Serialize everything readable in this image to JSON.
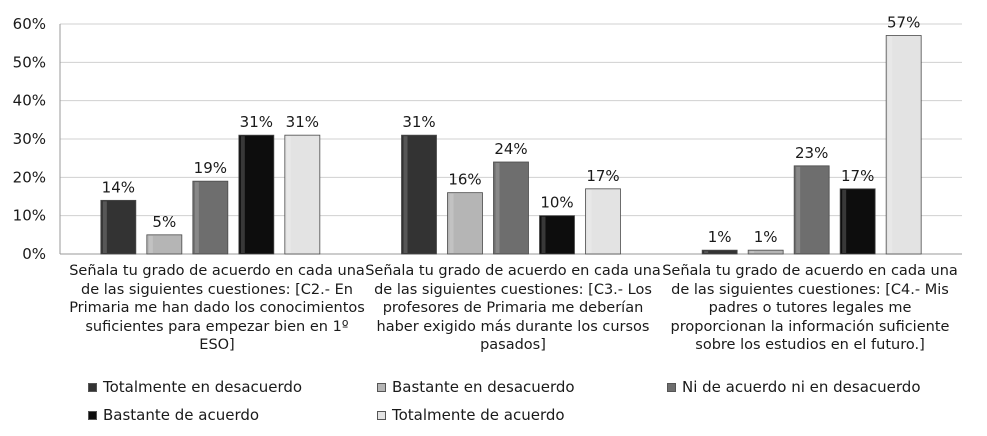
{
  "chart_data": {
    "type": "bar",
    "title": "",
    "xlabel": "",
    "ylabel": "",
    "ylim": [
      0,
      60
    ],
    "yticks": [
      "0%",
      "10%",
      "20%",
      "30%",
      "40%",
      "50%",
      "60%"
    ],
    "categories": [
      "Señala tu grado de acuerdo en cada una de las siguientes cuestiones: [C2.- En Primaria me han dado los conocimientos suficientes para empezar bien en 1º ESO]",
      "Señala tu grado de acuerdo en cada una de las siguientes cuestiones: [C3.- Los profesores de Primaria me deberían haber exigido más durante los cursos pasados]",
      "Señala tu grado de acuerdo en cada una de las siguientes cuestiones: [C4.- Mis padres o tutores legales me proporcionan la información suficiente sobre los estudios en el futuro.]"
    ],
    "series": [
      {
        "name": "Totalmente en desacuerdo",
        "color": "#333333",
        "values": [
          14,
          31,
          1
        ],
        "labels": [
          "14%",
          "31%",
          "1%"
        ]
      },
      {
        "name": "Bastante en desacuerdo",
        "color": "#b5b5b5",
        "values": [
          5,
          16,
          1
        ],
        "labels": [
          "5%",
          "16%",
          "1%"
        ]
      },
      {
        "name": "Ni de acuerdo ni en desacuerdo",
        "color": "#6e6e6e",
        "values": [
          19,
          24,
          23
        ],
        "labels": [
          "19%",
          "24%",
          "23%"
        ]
      },
      {
        "name": "Bastante de acuerdo",
        "color": "#0d0d0d",
        "values": [
          31,
          10,
          17
        ],
        "labels": [
          "31%",
          "10%",
          "17%"
        ]
      },
      {
        "name": "Totalmente de acuerdo",
        "color": "#e3e3e3",
        "values": [
          31,
          17,
          57
        ],
        "labels": [
          "31%",
          "17%",
          "57%"
        ]
      }
    ],
    "grid": true,
    "legend_position": "bottom"
  }
}
